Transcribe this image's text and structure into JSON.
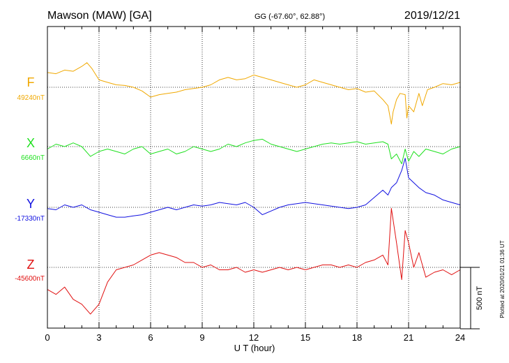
{
  "header": {
    "station": "Mawson (MAW)  [GA]",
    "coords": "GG (-67.60°,  62.88°)",
    "date": "2019/12/21"
  },
  "side_note": "Plotted at 2020/01/21 01:36 UT",
  "chart_data": {
    "type": "line",
    "xlabel": "U T (hour)",
    "xlim": [
      0,
      24
    ],
    "x_ticks": [
      0,
      3,
      6,
      9,
      12,
      15,
      18,
      21,
      24
    ],
    "x_tick_labels": [
      "0",
      "3",
      "6",
      "9",
      "12",
      "15",
      "18",
      "21",
      "24"
    ],
    "grid": true,
    "scale_bar": {
      "label": "500 nT",
      "nT": 500
    },
    "series": [
      {
        "name": "F",
        "baseline_label": "49240nT",
        "baseline_nT": 49240,
        "color": "#f0a800",
        "x": [
          0,
          0.5,
          1.0,
          1.5,
          2.0,
          2.3,
          2.6,
          3.0,
          3.5,
          4.0,
          4.5,
          5.0,
          5.5,
          6.0,
          6.5,
          7.0,
          7.5,
          8.0,
          8.5,
          9.0,
          9.5,
          10.0,
          10.5,
          11.0,
          11.5,
          12.0,
          12.5,
          13.0,
          13.5,
          14.0,
          14.5,
          15.0,
          15.5,
          16.0,
          16.5,
          17.0,
          17.5,
          18.0,
          18.5,
          19.0,
          19.5,
          19.8,
          20.0,
          20.1,
          20.3,
          20.5,
          20.8,
          20.9,
          21.0,
          21.3,
          21.6,
          21.8,
          22.1,
          22.5,
          23.0,
          23.5,
          24.0
        ],
        "y": [
          120,
          110,
          140,
          130,
          170,
          200,
          150,
          60,
          40,
          20,
          15,
          0,
          -30,
          -80,
          -60,
          -50,
          -40,
          -20,
          -10,
          0,
          20,
          60,
          80,
          60,
          70,
          100,
          80,
          60,
          40,
          20,
          0,
          20,
          60,
          40,
          20,
          0,
          -20,
          -10,
          -40,
          -30,
          -100,
          -150,
          -300,
          -200,
          -100,
          -50,
          -60,
          -250,
          -150,
          -200,
          -50,
          -150,
          -20,
          0,
          30,
          20,
          40
        ]
      },
      {
        "name": "X",
        "baseline_label": "6660nT",
        "baseline_nT": 6660,
        "color": "#1ee01e",
        "x": [
          0,
          0.5,
          1.0,
          1.5,
          2.0,
          2.5,
          3.0,
          3.5,
          4.0,
          4.5,
          5.0,
          5.5,
          6.0,
          6.5,
          7.0,
          7.5,
          8.0,
          8.5,
          9.0,
          9.5,
          10.0,
          10.5,
          11.0,
          11.5,
          12.0,
          12.5,
          13.0,
          13.5,
          14.0,
          14.5,
          15.0,
          15.5,
          16.0,
          16.5,
          17.0,
          17.5,
          18.0,
          18.5,
          19.0,
          19.5,
          19.8,
          20.0,
          20.3,
          20.6,
          20.8,
          21.0,
          21.3,
          21.6,
          22.0,
          22.5,
          23.0,
          23.5,
          24.0
        ],
        "y": [
          -20,
          20,
          0,
          30,
          0,
          -80,
          -40,
          -20,
          -40,
          -60,
          -20,
          0,
          -60,
          -40,
          -20,
          -60,
          -40,
          0,
          -20,
          -40,
          -20,
          20,
          0,
          30,
          50,
          60,
          20,
          0,
          -20,
          -40,
          -20,
          0,
          20,
          30,
          20,
          30,
          40,
          20,
          30,
          40,
          20,
          -100,
          -60,
          -140,
          -20,
          -120,
          -40,
          -80,
          -20,
          -40,
          -60,
          -20,
          0
        ]
      },
      {
        "name": "Y",
        "baseline_label": "-17330nT",
        "baseline_nT": -17330,
        "color": "#1010e0",
        "x": [
          0,
          0.5,
          1.0,
          1.5,
          2.0,
          2.5,
          3.0,
          3.5,
          4.0,
          4.5,
          5.0,
          5.5,
          6.0,
          6.5,
          7.0,
          7.5,
          8.0,
          8.5,
          9.0,
          9.5,
          10.0,
          10.5,
          11.0,
          11.5,
          12.0,
          12.5,
          13.0,
          13.5,
          14.0,
          14.5,
          15.0,
          15.5,
          16.0,
          16.5,
          17.0,
          17.5,
          18.0,
          18.5,
          19.0,
          19.5,
          19.8,
          20.0,
          20.3,
          20.6,
          20.8,
          21.0,
          21.3,
          21.6,
          22.0,
          22.5,
          23.0,
          23.5,
          24.0
        ],
        "y": [
          -10,
          -20,
          20,
          0,
          20,
          -20,
          -40,
          -60,
          -80,
          -80,
          -70,
          -60,
          -40,
          -20,
          0,
          -20,
          0,
          20,
          10,
          20,
          40,
          30,
          20,
          40,
          0,
          -60,
          -30,
          0,
          20,
          30,
          40,
          30,
          20,
          10,
          0,
          -10,
          0,
          20,
          80,
          140,
          100,
          160,
          200,
          300,
          400,
          240,
          200,
          160,
          120,
          100,
          60,
          40,
          20
        ]
      },
      {
        "name": "Z",
        "baseline_label": "-45600nT",
        "baseline_nT": -45600,
        "color": "#e01010",
        "x": [
          0,
          0.5,
          1.0,
          1.5,
          2.0,
          2.5,
          3.0,
          3.5,
          4.0,
          4.5,
          5.0,
          5.5,
          6.0,
          6.5,
          7.0,
          7.5,
          8.0,
          8.5,
          9.0,
          9.5,
          10.0,
          10.5,
          11.0,
          11.5,
          12.0,
          12.5,
          13.0,
          13.5,
          14.0,
          14.5,
          15.0,
          15.5,
          16.0,
          16.5,
          17.0,
          17.5,
          18.0,
          18.5,
          19.0,
          19.5,
          19.8,
          20.0,
          20.3,
          20.6,
          20.8,
          21.0,
          21.3,
          21.6,
          22.0,
          22.5,
          23.0,
          23.5,
          24.0
        ],
        "y": [
          -180,
          -220,
          -160,
          -260,
          -300,
          -380,
          -300,
          -120,
          -20,
          0,
          20,
          60,
          100,
          120,
          100,
          80,
          40,
          40,
          0,
          20,
          -20,
          -20,
          0,
          -40,
          -20,
          -40,
          -20,
          0,
          -20,
          0,
          -20,
          0,
          20,
          20,
          0,
          20,
          0,
          40,
          60,
          100,
          20,
          480,
          200,
          -100,
          300,
          200,
          0,
          120,
          -80,
          -40,
          -20,
          -60,
          -20
        ]
      }
    ]
  }
}
